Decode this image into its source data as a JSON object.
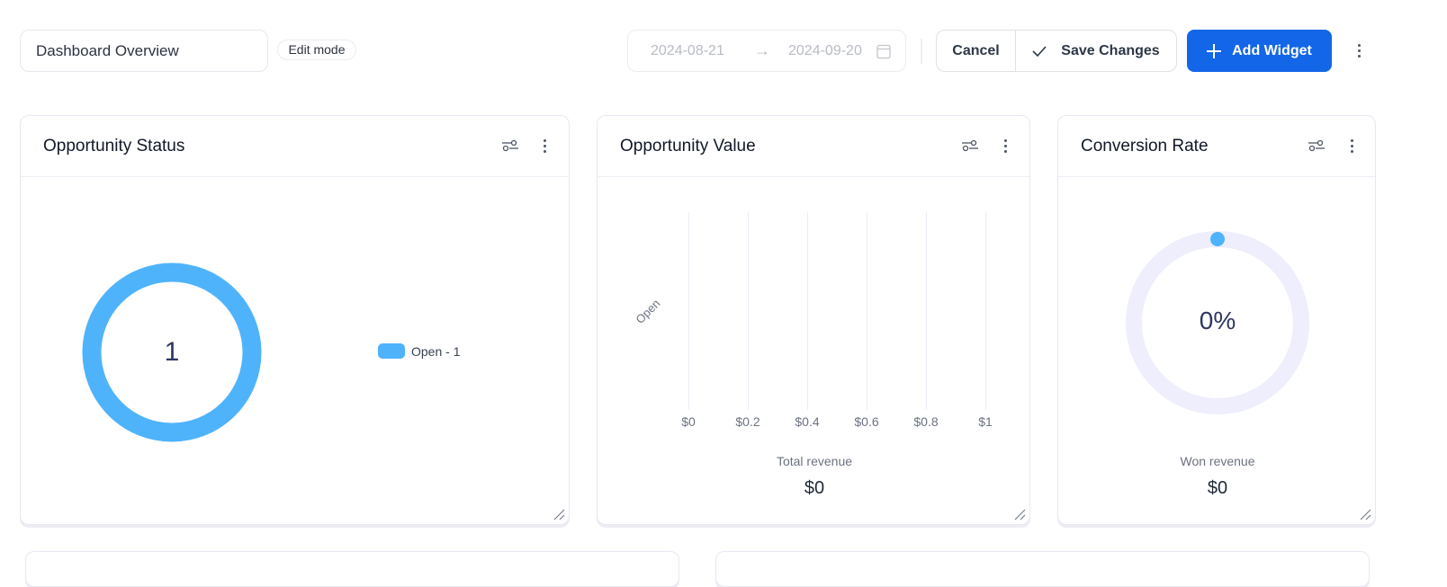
{
  "header": {
    "dashboard_name": "Dashboard Overview",
    "mode_badge": "Edit mode",
    "date_start": "2024-08-21",
    "date_end": "2024-09-20",
    "cancel_label": "Cancel",
    "save_label": "Save Changes",
    "add_widget_label": "Add Widget",
    "accent_color": "#1366e8"
  },
  "widgets": {
    "status": {
      "title": "Opportunity Status",
      "total": "1",
      "legend": "Open - 1",
      "color": "#4fb3fc"
    },
    "value": {
      "title": "Opportunity Value",
      "category": "Open",
      "ticks": [
        "$0",
        "$0.2",
        "$0.4",
        "$0.6",
        "$0.8",
        "$1"
      ],
      "footer_label": "Total revenue",
      "footer_value": "$0"
    },
    "conversion": {
      "title": "Conversion Rate",
      "percent": "0%",
      "footer_label": "Won revenue",
      "footer_value": "$0"
    }
  }
}
